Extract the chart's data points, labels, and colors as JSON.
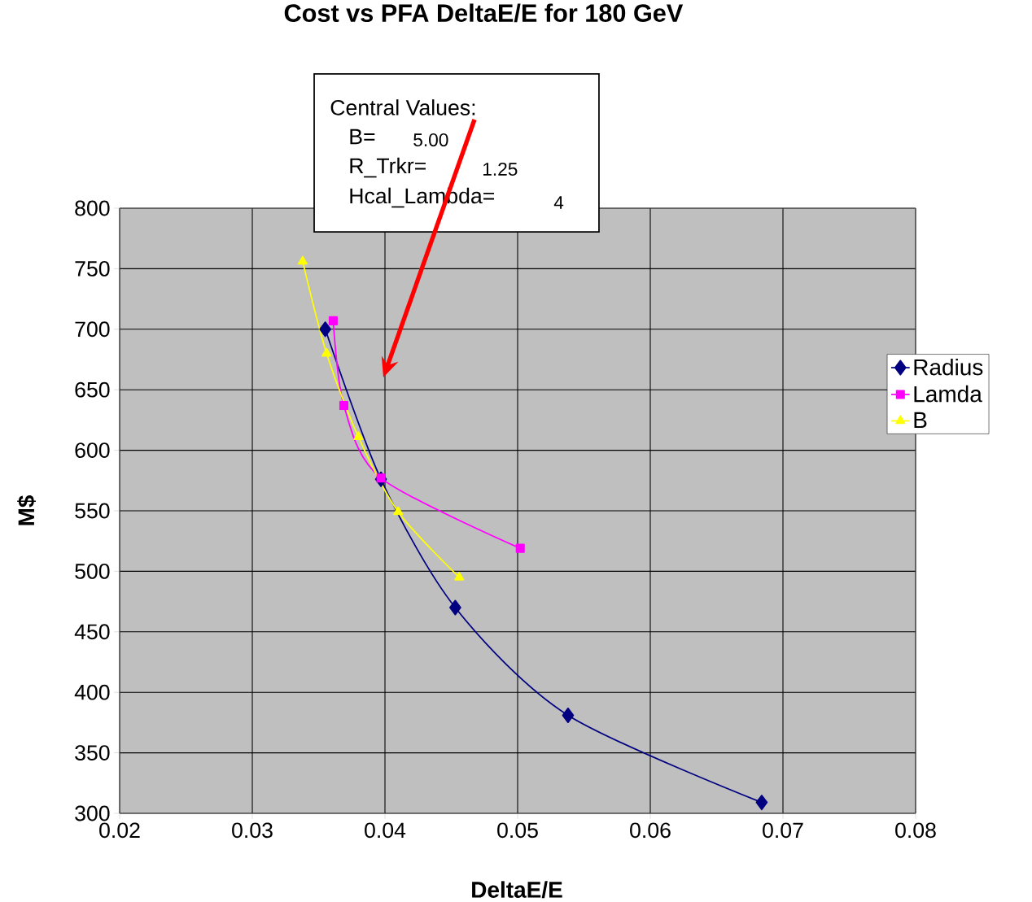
{
  "chart_data": {
    "type": "line",
    "title": "Cost vs PFA  DeltaE/E for 180 GeV",
    "xlabel": "DeltaE/E",
    "ylabel": "M$",
    "xlim": [
      0.02,
      0.08
    ],
    "xticks": [
      0.02,
      0.03,
      0.04,
      0.05,
      0.06,
      0.07,
      0.08
    ],
    "ylim": [
      300,
      800
    ],
    "yticks": [
      300,
      350,
      400,
      450,
      500,
      550,
      600,
      650,
      700,
      750,
      800
    ],
    "grid": true,
    "legend": "right",
    "annotations": [
      "Central  Values:",
      "B=",
      "5.00",
      "R_Trkr=",
      "1.25",
      "Hcal_Lambda=",
      "4"
    ],
    "series": [
      {
        "name": "Radius",
        "color": "#000080",
        "marker": "diamond",
        "x": [
          0.0355,
          0.0397,
          0.0453,
          0.0538,
          0.0684
        ],
        "values": [
          700,
          576,
          470,
          381,
          309
        ]
      },
      {
        "name": "Lamda",
        "color": "#ff00ff",
        "marker": "square",
        "x": [
          0.0361,
          0.0369,
          0.0397,
          0.0502
        ],
        "values": [
          707,
          637,
          577,
          519
        ]
      },
      {
        "name": "B",
        "color": "#ffff00",
        "marker": "triangle",
        "x": [
          0.0338,
          0.0356,
          0.038,
          0.041,
          0.0456
        ],
        "values": [
          756,
          680,
          611,
          549,
          495
        ]
      }
    ]
  }
}
